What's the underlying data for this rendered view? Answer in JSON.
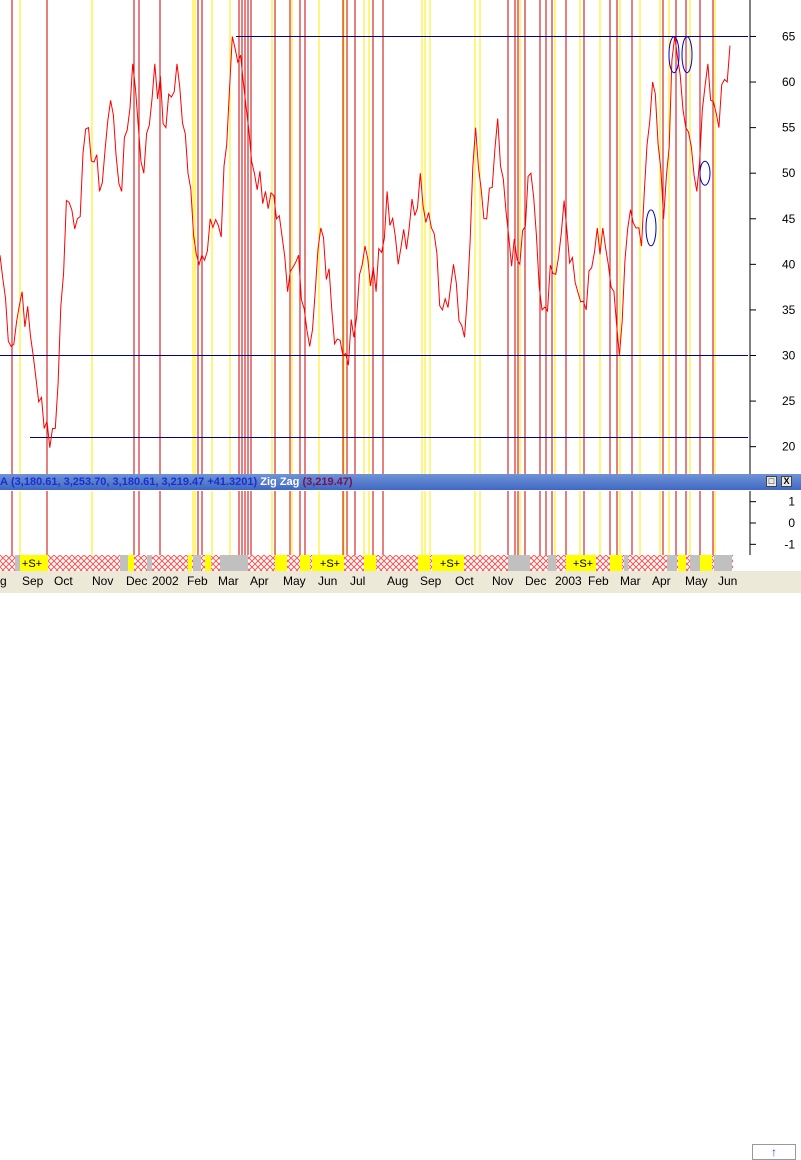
{
  "colors": {
    "price_line": "#ff0000",
    "signal_line_red": "#cc0000",
    "signal_line_yellow": "#ffee00",
    "support_line": "#00008b",
    "pane_header": "#4a72c8",
    "band_yellow": "#ffff00",
    "band_gray": "#c0c0c0",
    "band_hatch": "#ff6666"
  },
  "chart_data": [
    {
      "type": "line",
      "title": "",
      "ylim": [
        17,
        69
      ],
      "yticks": [
        20,
        25,
        30,
        35,
        40,
        45,
        50,
        55,
        60,
        65
      ],
      "months": [
        "g",
        "Sep",
        "Oct",
        "Nov",
        "Dec",
        "2002",
        "Feb",
        "Mar",
        "Apr",
        "May",
        "Jun",
        "Jul",
        "Aug",
        "Sep",
        "Oct",
        "Nov",
        "Dec",
        "2003",
        "Feb",
        "Mar",
        "Apr",
        "May",
        "Jun"
      ],
      "series": [
        {
          "values": [
            41,
            31,
            37,
            30,
            22,
            22,
            47,
            45,
            55,
            48,
            58,
            48,
            62,
            50,
            62,
            55,
            62,
            50,
            40,
            45,
            43,
            65,
            60,
            50,
            48,
            45,
            37,
            41,
            31,
            44,
            35,
            30,
            32,
            42,
            37,
            48,
            40,
            44,
            50,
            44,
            35,
            40,
            32,
            55,
            45,
            56,
            43,
            40,
            50,
            35,
            39,
            47,
            38,
            35,
            44,
            40,
            30,
            46,
            42,
            60,
            45,
            65,
            55,
            48,
            62,
            55,
            64
          ]
        }
      ],
      "horizontal_lines": [
        65,
        30,
        21
      ],
      "annotation_circles": [
        44,
        63,
        63,
        50
      ]
    },
    {
      "type": "line",
      "ylim": [
        -1.5,
        1.5
      ],
      "yticks": [
        1,
        0,
        -1
      ]
    }
  ],
  "indicator_header": {
    "prefix": "A",
    "values": "(3,180.61, 3,253.70, 3,180.61, 3,219.47 +41.3201)",
    "zigzag_label": "Zig Zag",
    "zigzag_value": "(3,219.47)"
  },
  "band_labels": [
    "+S+",
    "+S+",
    "+S+",
    "+S+"
  ],
  "buttons": {
    "restore": "□",
    "close": "X",
    "scroll_right": "↑"
  }
}
